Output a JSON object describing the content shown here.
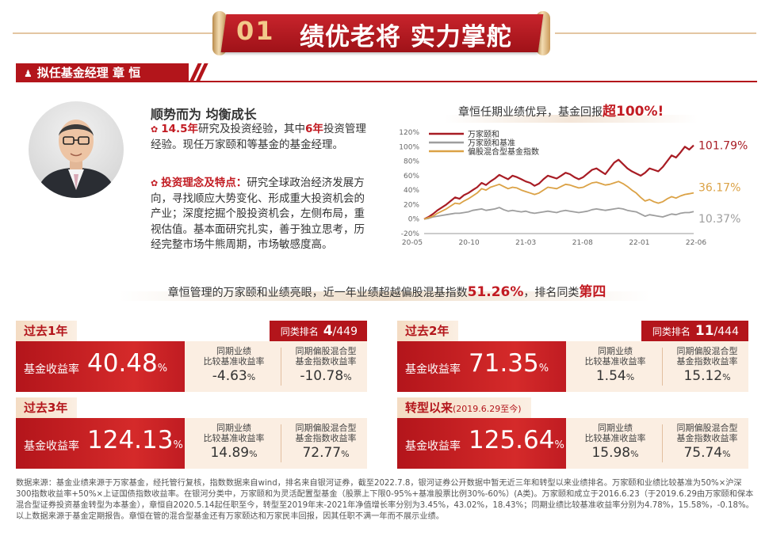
{
  "title": {
    "number": "01",
    "text": "绩优老将 实力掌舵"
  },
  "manager": {
    "label": "拟任基金经理  章  恒",
    "icon": "user-icon"
  },
  "bio": {
    "title": "顺势而为 均衡成长",
    "p1_hl": "14.5年",
    "p1_a": "研究及投资经验，其中",
    "p1_hl2": "6年",
    "p1_b": "投资管理经验。现任万家颐和等基金的基金经理。",
    "p2_hl": "投资理念及特点：",
    "p2": "研究全球政治经济发展方向，寻找顺应大势变化、形成重大投资机会的产业；深度挖掘个股投资机会，左侧布局，重视估值。基本面研究扎实，善于独立思考，历经完整市场牛熊周期，市场敏感度高。"
  },
  "chart_caption": {
    "prefix": "章恒任期业绩优异，基金回报",
    "highlight": "超100%!"
  },
  "chart_data": {
    "type": "line",
    "x_ticks": [
      "20-05",
      "20-10",
      "21-03",
      "21-08",
      "22-01",
      "22-06"
    ],
    "y_ticks": [
      "120%",
      "100%",
      "80%",
      "60%",
      "40%",
      "20%",
      "0%",
      "-20%"
    ],
    "ylim": [
      -20,
      120
    ],
    "legend_position": "top-left",
    "series": [
      {
        "name": "万家颐和",
        "color": "#a81c24",
        "end_label": "101.79%",
        "values": [
          0,
          3,
          7,
          12,
          16,
          20,
          25,
          30,
          28,
          33,
          36,
          40,
          44,
          50,
          47,
          52,
          56,
          61,
          58,
          55,
          60,
          58,
          55,
          52,
          50,
          46,
          49,
          55,
          60,
          58,
          56,
          60,
          64,
          62,
          58,
          55,
          58,
          63,
          68,
          70,
          66,
          62,
          70,
          78,
          82,
          76,
          70,
          66,
          63,
          60,
          64,
          70,
          68,
          66,
          72,
          80,
          88,
          85,
          92,
          100,
          96,
          101.79
        ]
      },
      {
        "name": "万家颐和基准",
        "color": "#9e9e9e",
        "end_label": "10.37%",
        "values": [
          0,
          1,
          3,
          4,
          5,
          6,
          7,
          8,
          8,
          9,
          10,
          12,
          13,
          14,
          12,
          13,
          14,
          16,
          13,
          11,
          12,
          11,
          10,
          11,
          9,
          8,
          9,
          10,
          11,
          10,
          9,
          11,
          12,
          11,
          10,
          9,
          10,
          11,
          13,
          14,
          13,
          12,
          13,
          14,
          15,
          14,
          12,
          11,
          10,
          7,
          4,
          6,
          5,
          4,
          3,
          5,
          7,
          6,
          8,
          9,
          9,
          10.37
        ]
      },
      {
        "name": "偏股混合型基金指数",
        "color": "#dba246",
        "end_label": "36.17%",
        "values": [
          0,
          2,
          4,
          8,
          11,
          14,
          18,
          22,
          21,
          25,
          28,
          32,
          36,
          42,
          40,
          44,
          46,
          48,
          45,
          42,
          44,
          43,
          40,
          38,
          36,
          34,
          36,
          40,
          44,
          43,
          42,
          45,
          48,
          47,
          45,
          43,
          44,
          47,
          50,
          51,
          49,
          47,
          48,
          50,
          52,
          49,
          45,
          40,
          36,
          30,
          25,
          27,
          24,
          22,
          24,
          28,
          31,
          29,
          32,
          34,
          35,
          36.17
        ]
      }
    ]
  },
  "summary": {
    "a": "章恒管理的万家颐和业绩亮眼，近一年业绩超越偏股混基指数",
    "hl1": "51.26%",
    "b": "，排名同类",
    "hl2": "第四"
  },
  "cards": [
    {
      "title": "过去1年",
      "subtitle": "",
      "return_label": "基金收益率",
      "return_value": "40.48",
      "pct": "%",
      "rank_label": "同类排名",
      "rank": "4",
      "rank_total": "/449",
      "c1_h1": "同期业绩",
      "c1_h2": "比较基准收益率",
      "c1_v": "-4.63",
      "c2_h1": "同期偏股混合型",
      "c2_h2": "基金指数收益率",
      "c2_v": "-10.78"
    },
    {
      "title": "过去2年",
      "subtitle": "",
      "return_label": "基金收益率",
      "return_value": "71.35",
      "pct": "%",
      "rank_label": "同类排名",
      "rank": "11",
      "rank_total": "/444",
      "c1_h1": "同期业绩",
      "c1_h2": "比较基准收益率",
      "c1_v": "1.54",
      "c2_h1": "同期偏股混合型",
      "c2_h2": "基金指数收益率",
      "c2_v": "15.12"
    },
    {
      "title": "过去3年",
      "subtitle": "",
      "return_label": "基金收益率",
      "return_value": "124.13",
      "pct": "%",
      "rank_label": "",
      "rank": "",
      "rank_total": "",
      "c1_h1": "同期业绩",
      "c1_h2": "比较基准收益率",
      "c1_v": "14.89",
      "c2_h1": "同期偏股混合型",
      "c2_h2": "基金指数收益率",
      "c2_v": "72.77"
    },
    {
      "title": "转型以来",
      "subtitle": "(2019.6.29至今)",
      "return_label": "基金收益率",
      "return_value": "125.64",
      "pct": "%",
      "rank_label": "",
      "rank": "",
      "rank_total": "",
      "c1_h1": "同期业绩",
      "c1_h2": "比较基准收益率",
      "c1_v": "15.98",
      "c2_h1": "同期偏股混合型",
      "c2_h2": "基金指数收益率",
      "c2_v": "75.74"
    }
  ],
  "footnote": "数据来源：基金业绩来源于万家基金，经托管行复核，指数数据来自wind，排名来自银河证券，截至2022.7.8，银河证券公开数据中暂无近三年和转型以来业绩排名。万家颐和业绩比较基准为50%×沪深300指数收益率+50%×上证国债指数收益率。在银河分类中，万家颐和为灵活配置型基金（股票上下限0-95%+基准股票比例30%-60%）(A类)。万家颐和成立于2016.6.23（于2019.6.29由万家颐和保本混合型证券投资基金转型为本基金），章恒自2020.5.14起任职至今，转型至2019年末-2021年净值增长率分别为3.45%，43.02%，18.43%；同期业绩比较基准收益率分别为4.78%，15.58%，-0.18%。以上数据来源于基金定期报告。章恒在管的混合型基金还有万家颐达和万家民丰回报，因其任职不满一年而不展示业绩。"
}
